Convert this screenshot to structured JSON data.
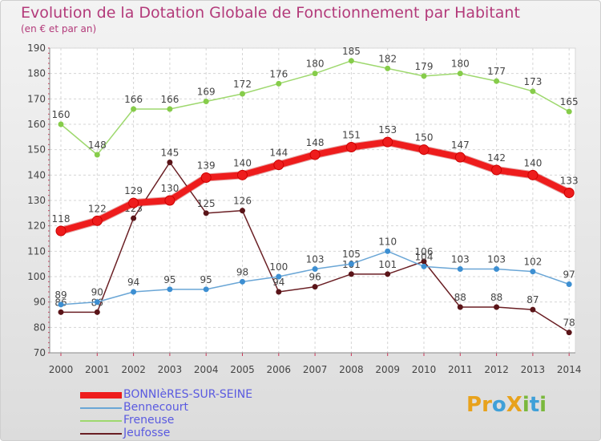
{
  "header": {
    "title": "Evolution de la Dotation Globale de Fonctionnement par Habitant",
    "subtitle": "(en € et par an)"
  },
  "brand": {
    "text": "ProXiti",
    "letters": [
      {
        "ch": "P",
        "color": "#e8a21c"
      },
      {
        "ch": "r",
        "color": "#e8a21c"
      },
      {
        "ch": "o",
        "color": "#3fa0d8"
      },
      {
        "ch": "X",
        "color": "#e8a21c"
      },
      {
        "ch": "i",
        "color": "#7ab83c"
      },
      {
        "ch": "t",
        "color": "#3fa0d8"
      },
      {
        "ch": "i",
        "color": "#7ab83c"
      }
    ]
  },
  "chart_data": {
    "type": "line",
    "title": "Evolution de la Dotation Globale de Fonctionnement par Habitant",
    "subtitle": "(en € et par an)",
    "xlabel": "",
    "ylabel": "",
    "categories": [
      "2000",
      "2001",
      "2002",
      "2003",
      "2004",
      "2005",
      "2006",
      "2007",
      "2008",
      "2009",
      "2010",
      "2011",
      "2012",
      "2013",
      "2014"
    ],
    "ylim": [
      70,
      190
    ],
    "yticks": [
      70,
      80,
      90,
      100,
      110,
      120,
      130,
      140,
      150,
      160,
      170,
      180,
      190
    ],
    "grid": true,
    "legend_position": "bottom-left",
    "series": [
      {
        "name": "BONNIèRES-SUR-SEINE",
        "color": "#ee1c1c",
        "marker_color": "#ee1c1c",
        "width": 8,
        "values": [
          118,
          122,
          129,
          130,
          139,
          140,
          144,
          148,
          151,
          153,
          150,
          147,
          142,
          140,
          133
        ]
      },
      {
        "name": "Bennecourt",
        "color": "#6aa6d6",
        "marker_color": "#3d8fd2",
        "width": 1.5,
        "values": [
          89,
          90,
          94,
          95,
          95,
          98,
          100,
          103,
          105,
          110,
          104,
          103,
          103,
          102,
          97
        ]
      },
      {
        "name": "Freneuse",
        "color": "#9ed86e",
        "marker_color": "#86cc4a",
        "width": 1.5,
        "values": [
          160,
          148,
          166,
          166,
          169,
          172,
          176,
          180,
          185,
          182,
          179,
          180,
          177,
          173,
          165
        ]
      },
      {
        "name": "Jeufosse",
        "color": "#6a1f24",
        "marker_color": "#5a1418",
        "width": 1.5,
        "values": [
          86,
          86,
          123,
          145,
          125,
          126,
          94,
          96,
          101,
          101,
          106,
          88,
          88,
          87,
          78
        ]
      }
    ]
  }
}
